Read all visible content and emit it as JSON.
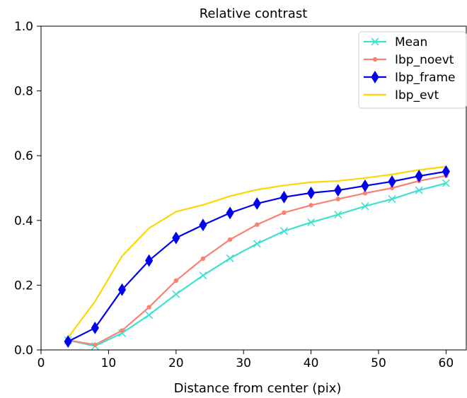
{
  "chart_data": {
    "type": "line",
    "title": "Relative contrast",
    "xlabel": "Distance from center (pix)",
    "ylabel": "",
    "xlim": [
      0,
      63
    ],
    "ylim": [
      0,
      1.0
    ],
    "xticks": [
      0,
      10,
      20,
      30,
      40,
      50,
      60
    ],
    "yticks": [
      0.0,
      0.2,
      0.4,
      0.6,
      0.8,
      1.0
    ],
    "xtick_labels": [
      "0",
      "10",
      "20",
      "30",
      "40",
      "50",
      "60"
    ],
    "ytick_labels": [
      "0.0",
      "0.2",
      "0.4",
      "0.6",
      "0.8",
      "1.0"
    ],
    "grid": false,
    "legend_position": "top-right",
    "x": [
      4,
      8,
      12,
      16,
      20,
      24,
      28,
      32,
      36,
      40,
      44,
      48,
      52,
      56,
      60
    ],
    "series": [
      {
        "name": "Mean",
        "color": "#40e0d0",
        "marker": "x",
        "values": [
          0.03,
          0.012,
          0.052,
          0.108,
          0.172,
          0.23,
          0.283,
          0.328,
          0.367,
          0.394,
          0.418,
          0.444,
          0.466,
          0.493,
          0.515
        ]
      },
      {
        "name": "Ibp_noevt",
        "color": "#fa8072",
        "marker": "dot",
        "values": [
          0.03,
          0.016,
          0.06,
          0.132,
          0.214,
          0.282,
          0.341,
          0.387,
          0.424,
          0.447,
          0.466,
          0.484,
          0.5,
          0.522,
          0.538
        ]
      },
      {
        "name": "Ibp_frame",
        "color": "#0000ee",
        "marker": "thin_diamond",
        "values": [
          0.026,
          0.068,
          0.186,
          0.276,
          0.346,
          0.386,
          0.423,
          0.452,
          0.472,
          0.485,
          0.493,
          0.507,
          0.52,
          0.537,
          0.551
        ]
      },
      {
        "name": "Ibp_evt",
        "color": "#ffd700",
        "marker": "none",
        "values": [
          0.038,
          0.15,
          0.29,
          0.376,
          0.427,
          0.448,
          0.475,
          0.495,
          0.508,
          0.518,
          0.522,
          0.531,
          0.542,
          0.556,
          0.566
        ]
      }
    ]
  }
}
